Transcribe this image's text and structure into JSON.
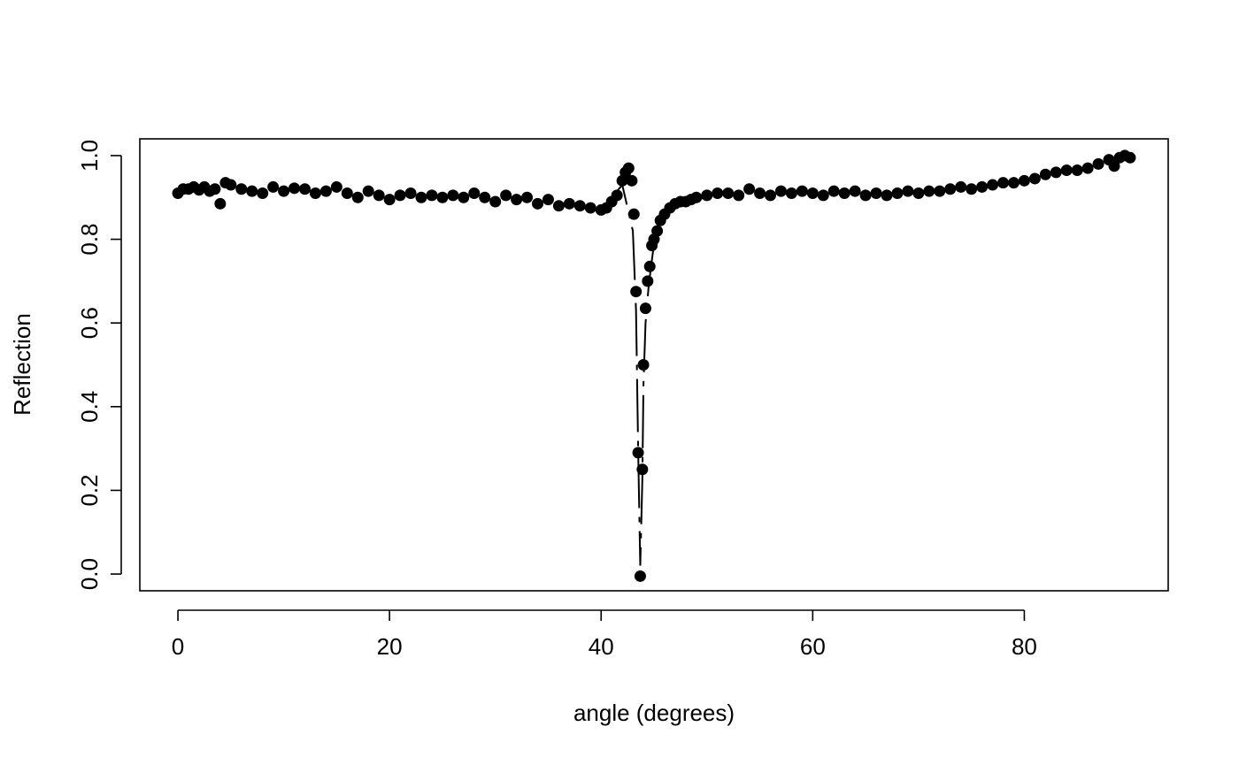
{
  "chart_data": {
    "type": "scatter",
    "title": "",
    "xlabel": "angle (degrees)",
    "ylabel": "Reflection",
    "xlim": [
      -3.6,
      93.6
    ],
    "ylim": [
      -0.04,
      1.04
    ],
    "xticks": [
      0,
      20,
      40,
      60,
      80
    ],
    "yticks": [
      0.0,
      0.2,
      0.4,
      0.6,
      0.8,
      1.0
    ],
    "xtick_labels": [
      "0",
      "20",
      "40",
      "60",
      "80"
    ],
    "ytick_labels": [
      "0.0",
      "0.2",
      "0.4",
      "0.6",
      "0.8",
      "1.0"
    ],
    "grid": false,
    "legend": "none",
    "marker": "filled-circle",
    "color": "#000000",
    "series": [
      {
        "points": [
          [
            0.0,
            0.91
          ],
          [
            0.5,
            0.92
          ],
          [
            1.0,
            0.92
          ],
          [
            1.5,
            0.925
          ],
          [
            2.0,
            0.918
          ],
          [
            2.5,
            0.925
          ],
          [
            3.0,
            0.915
          ],
          [
            3.5,
            0.92
          ],
          [
            4.0,
            0.885
          ],
          [
            4.5,
            0.935
          ],
          [
            5.0,
            0.93
          ],
          [
            6.0,
            0.92
          ],
          [
            7.0,
            0.915
          ],
          [
            8.0,
            0.91
          ],
          [
            9.0,
            0.925
          ],
          [
            10.0,
            0.915
          ],
          [
            11.0,
            0.922
          ],
          [
            12.0,
            0.92
          ],
          [
            13.0,
            0.91
          ],
          [
            14.0,
            0.915
          ],
          [
            15.0,
            0.925
          ],
          [
            16.0,
            0.91
          ],
          [
            17.0,
            0.9
          ],
          [
            18.0,
            0.915
          ],
          [
            19.0,
            0.905
          ],
          [
            20.0,
            0.895
          ],
          [
            21.0,
            0.905
          ],
          [
            22.0,
            0.91
          ],
          [
            23.0,
            0.9
          ],
          [
            24.0,
            0.905
          ],
          [
            25.0,
            0.9
          ],
          [
            26.0,
            0.905
          ],
          [
            27.0,
            0.9
          ],
          [
            28.0,
            0.91
          ],
          [
            29.0,
            0.9
          ],
          [
            30.0,
            0.89
          ],
          [
            31.0,
            0.905
          ],
          [
            32.0,
            0.895
          ],
          [
            33.0,
            0.9
          ],
          [
            34.0,
            0.885
          ],
          [
            35.0,
            0.895
          ],
          [
            36.0,
            0.88
          ],
          [
            37.0,
            0.885
          ],
          [
            38.0,
            0.88
          ],
          [
            39.0,
            0.875
          ],
          [
            40.0,
            0.87
          ],
          [
            40.5,
            0.875
          ],
          [
            41.0,
            0.89
          ],
          [
            41.5,
            0.905
          ],
          [
            42.0,
            0.94
          ],
          [
            42.3,
            0.96
          ],
          [
            42.6,
            0.97
          ],
          [
            42.9,
            0.94
          ],
          [
            43.1,
            0.86
          ],
          [
            43.3,
            0.675
          ],
          [
            43.5,
            0.29
          ],
          [
            43.7,
            -0.005
          ],
          [
            43.9,
            0.25
          ],
          [
            44.0,
            0.5
          ],
          [
            44.2,
            0.635
          ],
          [
            44.4,
            0.7
          ],
          [
            44.6,
            0.735
          ],
          [
            44.8,
            0.785
          ],
          [
            45.0,
            0.8
          ],
          [
            45.3,
            0.82
          ],
          [
            45.6,
            0.845
          ],
          [
            46.0,
            0.86
          ],
          [
            46.5,
            0.875
          ],
          [
            47.0,
            0.885
          ],
          [
            47.5,
            0.89
          ],
          [
            48.0,
            0.89
          ],
          [
            48.5,
            0.895
          ],
          [
            49.0,
            0.9
          ],
          [
            50.0,
            0.905
          ],
          [
            51.0,
            0.91
          ],
          [
            52.0,
            0.91
          ],
          [
            53.0,
            0.905
          ],
          [
            54.0,
            0.92
          ],
          [
            55.0,
            0.91
          ],
          [
            56.0,
            0.905
          ],
          [
            57.0,
            0.915
          ],
          [
            58.0,
            0.91
          ],
          [
            59.0,
            0.915
          ],
          [
            60.0,
            0.91
          ],
          [
            61.0,
            0.905
          ],
          [
            62.0,
            0.915
          ],
          [
            63.0,
            0.91
          ],
          [
            64.0,
            0.915
          ],
          [
            65.0,
            0.905
          ],
          [
            66.0,
            0.91
          ],
          [
            67.0,
            0.905
          ],
          [
            68.0,
            0.91
          ],
          [
            69.0,
            0.915
          ],
          [
            70.0,
            0.91
          ],
          [
            71.0,
            0.915
          ],
          [
            72.0,
            0.915
          ],
          [
            73.0,
            0.92
          ],
          [
            74.0,
            0.925
          ],
          [
            75.0,
            0.92
          ],
          [
            76.0,
            0.925
          ],
          [
            77.0,
            0.93
          ],
          [
            78.0,
            0.935
          ],
          [
            79.0,
            0.935
          ],
          [
            80.0,
            0.94
          ],
          [
            81.0,
            0.945
          ],
          [
            82.0,
            0.955
          ],
          [
            83.0,
            0.96
          ],
          [
            84.0,
            0.965
          ],
          [
            85.0,
            0.965
          ],
          [
            86.0,
            0.97
          ],
          [
            87.0,
            0.98
          ],
          [
            88.0,
            0.99
          ],
          [
            88.5,
            0.975
          ],
          [
            89.0,
            0.995
          ],
          [
            89.5,
            1.0
          ],
          [
            90.0,
            0.995
          ]
        ]
      }
    ],
    "fit_line": [
      [
        40.0,
        0.87
      ],
      [
        42.0,
        0.93
      ],
      [
        43.0,
        0.82
      ],
      [
        43.3,
        0.63
      ],
      [
        43.5,
        0.3
      ],
      [
        43.7,
        0.02
      ],
      [
        43.9,
        0.23
      ],
      [
        44.0,
        0.45
      ],
      [
        44.2,
        0.6
      ],
      [
        44.5,
        0.69
      ],
      [
        45.0,
        0.79
      ],
      [
        46.0,
        0.86
      ],
      [
        48.0,
        0.89
      ],
      [
        50.0,
        0.9
      ]
    ]
  }
}
